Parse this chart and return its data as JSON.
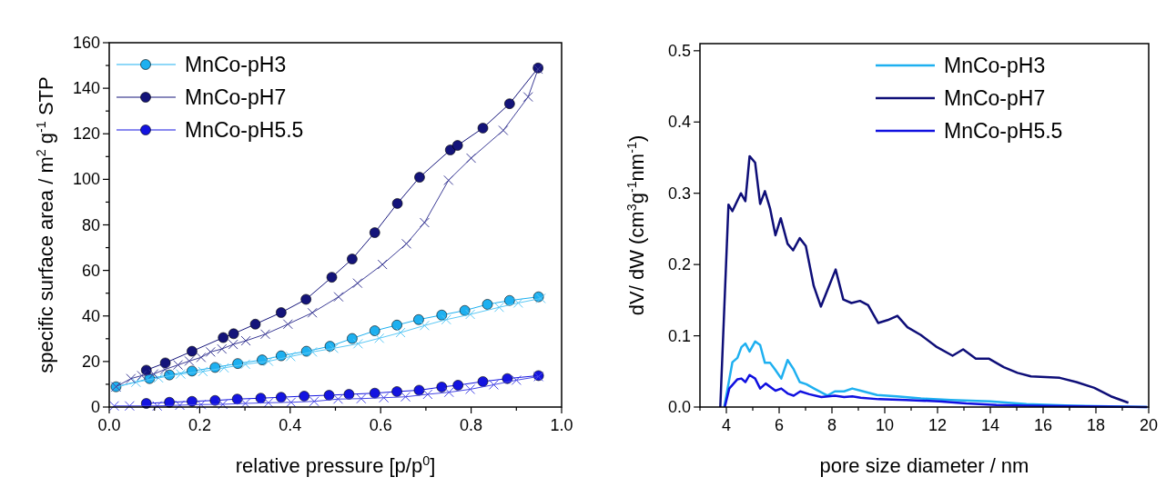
{
  "chart_data": [
    {
      "type": "line",
      "xlabel": "relative pressure [p/p$^{0}$]",
      "ylabel": "specific surface area / m$^{2}$ g$^{-1}$ STP",
      "xlim": [
        0,
        1
      ],
      "ylim": [
        0,
        160
      ],
      "xticks": [
        {
          "value": 0,
          "label": "0.0"
        },
        {
          "value": 0.1,
          "label": null
        },
        0.2,
        {
          "value": 0.3,
          "label": null
        },
        0.4,
        {
          "value": 0.5,
          "label": null
        },
        0.6,
        {
          "value": 0.7,
          "label": null
        },
        0.8,
        {
          "value": 0.9,
          "label": null
        },
        {
          "value": 1,
          "label": "1.0"
        }
      ],
      "yticks": [
        0,
        {
          "value": 10,
          "label": null
        },
        20,
        {
          "value": 30,
          "label": null
        },
        40,
        {
          "value": 50,
          "label": null
        },
        60,
        {
          "value": 70,
          "label": null
        },
        80,
        {
          "value": 90,
          "label": null
        },
        100,
        {
          "value": 110,
          "label": null
        },
        120,
        {
          "value": 130,
          "label": null
        },
        140,
        {
          "value": 150,
          "label": null
        },
        160
      ],
      "legend": "top left",
      "grid": false,
      "series": [
        {
          "name": "MnCo-pH3",
          "color": "#1eb0f0",
          "marker": "circle",
          "x": [
            0.015,
            0.089,
            0.133,
            0.183,
            0.234,
            0.284,
            0.338,
            0.38,
            0.436,
            0.488,
            0.537,
            0.587,
            0.636,
            0.684,
            0.735,
            0.786,
            0.836,
            0.885,
            0.949
          ],
          "values": [
            8.9,
            12.5,
            14.1,
            15.8,
            17.4,
            19.1,
            20.7,
            22.5,
            24.5,
            26.7,
            30.1,
            33.5,
            36,
            38.4,
            40.4,
            42.4,
            45.1,
            46.8,
            48.4
          ]
        },
        {
          "name": "MnCo-pH7",
          "color": "#14147a",
          "marker": "circle",
          "x": [
            0.082,
            0.124,
            0.183,
            0.252,
            0.275,
            0.323,
            0.38,
            0.435,
            0.492,
            0.537,
            0.587,
            0.637,
            0.686,
            0.754,
            0.77,
            0.826,
            0.885,
            0.948
          ],
          "values": [
            16.2,
            19.4,
            24.5,
            30.5,
            32.2,
            36.4,
            41.5,
            47.3,
            57,
            65,
            76.6,
            89.4,
            100.9,
            112.9,
            114.9,
            122.5,
            133.2,
            148.9
          ]
        },
        {
          "name": "MnCo-pH5.5",
          "color": "#1414e0",
          "marker": "circle",
          "x": [
            0.082,
            0.133,
            0.183,
            0.234,
            0.283,
            0.335,
            0.38,
            0.431,
            0.486,
            0.53,
            0.587,
            0.636,
            0.685,
            0.735,
            0.771,
            0.826,
            0.88,
            0.949
          ],
          "values": [
            1.6,
            2.1,
            2.5,
            2.9,
            3.5,
            3.9,
            4.3,
            4.8,
            5.2,
            5.6,
            6.1,
            6.8,
            7.4,
            8.8,
            9.6,
            11.2,
            12.5,
            13.8
          ]
        },
        {
          "color": "#5ac8f5",
          "marker": "cross",
          "x": [
            0.954,
            0.904,
            0.862,
            0.798,
            0.745,
            0.697,
            0.644,
            0.597,
            0.55,
            0.496,
            0.449,
            0.401,
            0.352,
            0.301,
            0.254,
            0.207,
            0.158,
            0.109,
            0.059,
            0.015
          ],
          "values": [
            47.7,
            45.7,
            43.8,
            40.7,
            38.4,
            35.8,
            32.7,
            30.2,
            27.8,
            25.8,
            24.2,
            22.2,
            20.1,
            18.8,
            17.2,
            15.6,
            14.5,
            12.8,
            10.9,
            8.8
          ]
        },
        {
          "color": "#3c3c96",
          "marker": "cross",
          "x": [
            0.948,
            0.926,
            0.871,
            0.8,
            0.75,
            0.697,
            0.657,
            0.604,
            0.549,
            0.507,
            0.449,
            0.395,
            0.345,
            0.302,
            0.274,
            0.249,
            0.224,
            0.203,
            0.177,
            0.152,
            0.123,
            0.098,
            0.072,
            0.048,
            0.015
          ],
          "values": [
            148.4,
            136.2,
            121.5,
            109.3,
            99.6,
            81,
            71.7,
            62.6,
            54.4,
            48.4,
            41.4,
            36.4,
            32,
            29.1,
            27.5,
            25.5,
            24.2,
            21.8,
            20.2,
            18.5,
            16.5,
            14.5,
            13.8,
            12.5,
            8.9
          ]
        },
        {
          "color": "#4646e6",
          "marker": "cross",
          "x": [
            0.949,
            0.9,
            0.85,
            0.798,
            0.751,
            0.704,
            0.655,
            0.607,
            0.557,
            0.506,
            0.453,
            0.402,
            0.352,
            0.301,
            0.251,
            0.203,
            0.156,
            0.106,
            0.045,
            0.011
          ],
          "values": [
            13.4,
            11.8,
            9.8,
            7.8,
            6.5,
            5.6,
            4.5,
            4.1,
            3.7,
            3.5,
            2.5,
            2.1,
            1.9,
            1.6,
            1.2,
            1.1,
            0.8,
            0.5,
            0.5,
            0.5
          ]
        }
      ]
    },
    {
      "type": "line",
      "xlabel": "pore size diameter / nm",
      "ylabel": "dV/ dW (cm$^{3}$g$^{-1}$nm$^{-1}$)",
      "xlim": [
        3,
        20
      ],
      "ylim": [
        0,
        0.51
      ],
      "xticks": [
        {
          "value": 3,
          "label": null
        },
        4,
        {
          "value": 5,
          "label": null
        },
        6,
        {
          "value": 7,
          "label": null
        },
        8,
        {
          "value": 9,
          "label": null
        },
        10,
        {
          "value": 11,
          "label": null
        },
        12,
        {
          "value": 13,
          "label": null
        },
        14,
        {
          "value": 15,
          "label": null
        },
        16,
        {
          "value": 17,
          "label": null
        },
        18,
        {
          "value": 19,
          "label": null
        },
        20
      ],
      "yticks": [
        {
          "value": 0,
          "label": "0.0"
        },
        0.1,
        0.2,
        0.3,
        0.4,
        0.5
      ],
      "legend": "top right",
      "grid": false,
      "marker": "none",
      "series": [
        {
          "name": "MnCo-pH3",
          "color": "#1eb0f0",
          "x": [
            3.92,
            4.23,
            4.42,
            4.57,
            4.72,
            4.88,
            5.09,
            5.28,
            5.46,
            5.66,
            5.86,
            6.08,
            6.32,
            6.55,
            6.78,
            7.03,
            7.37,
            7.83,
            8.11,
            8.46,
            8.77,
            9.09,
            9.71,
            10.46,
            11.37,
            12.51,
            14,
            15.37,
            17.09,
            19.94
          ],
          "values": [
            0,
            0.063,
            0.069,
            0.084,
            0.089,
            0.078,
            0.092,
            0.087,
            0.062,
            0.062,
            0.052,
            0.04,
            0.066,
            0.053,
            0.035,
            0.032,
            0.025,
            0.016,
            0.022,
            0.022,
            0.026,
            0.023,
            0.017,
            0.015,
            0.012,
            0.01,
            0.008,
            0.004,
            0.002,
            0
          ]
        },
        {
          "name": "MnCo-pH7",
          "color": "#0e0e78",
          "x": [
            3.77,
            4.08,
            4.23,
            4.55,
            4.72,
            4.88,
            5.09,
            5.28,
            5.46,
            5.66,
            5.86,
            6.06,
            6.32,
            6.53,
            6.78,
            7.01,
            7.31,
            7.58,
            7.85,
            8.14,
            8.43,
            8.74,
            9.06,
            9.37,
            9.75,
            10.11,
            10.48,
            10.86,
            11.37,
            11.94,
            12.57,
            12.97,
            13.45,
            13.94,
            14.51,
            15.03,
            15.54,
            16.63,
            17.26,
            17.94,
            18.57,
            19.23
          ],
          "values": [
            0,
            0.284,
            0.275,
            0.3,
            0.289,
            0.352,
            0.343,
            0.285,
            0.303,
            0.278,
            0.241,
            0.265,
            0.229,
            0.22,
            0.237,
            0.226,
            0.17,
            0.141,
            0.166,
            0.193,
            0.151,
            0.146,
            0.149,
            0.143,
            0.118,
            0.122,
            0.128,
            0.112,
            0.101,
            0.085,
            0.072,
            0.081,
            0.068,
            0.068,
            0.056,
            0.048,
            0.043,
            0.041,
            0.035,
            0.027,
            0.015,
            0.006
          ]
        },
        {
          "name": "MnCo-pH5.5",
          "color": "#1010e0",
          "x": [
            3.94,
            4.11,
            4.42,
            4.57,
            4.72,
            4.88,
            5.09,
            5.28,
            5.49,
            5.86,
            6.08,
            6.32,
            6.55,
            6.8,
            7.14,
            7.6,
            8.11,
            8.46,
            8.77,
            9.09,
            9.77,
            10.8,
            12.06,
            13.09,
            14.23,
            15.37,
            19.94
          ],
          "values": [
            0,
            0.026,
            0.039,
            0.04,
            0.035,
            0.045,
            0.04,
            0.026,
            0.033,
            0.023,
            0.026,
            0.019,
            0.016,
            0.022,
            0.018,
            0.014,
            0.016,
            0.014,
            0.015,
            0.013,
            0.011,
            0.01,
            0.008,
            0.005,
            0.003,
            0.002,
            0
          ]
        }
      ]
    }
  ]
}
